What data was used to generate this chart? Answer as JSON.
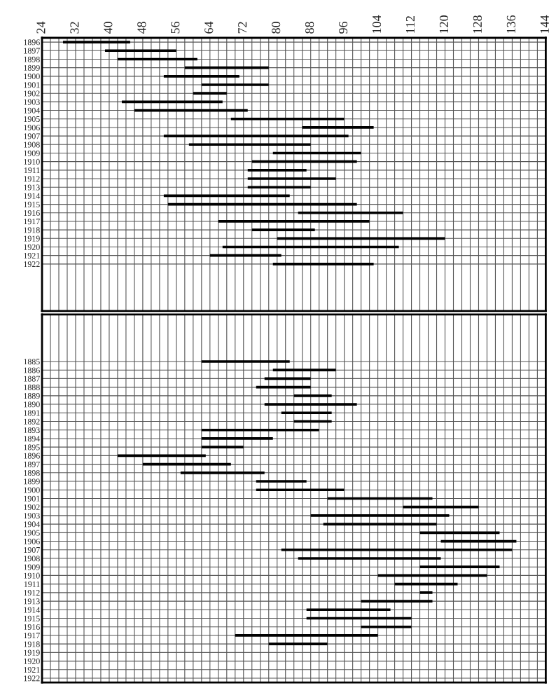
{
  "chart_data": [
    {
      "type": "bar",
      "orientation": "horizontal",
      "grid": true,
      "color": "#000000",
      "categories": [
        "1896",
        "1897",
        "1898",
        "1899",
        "1900",
        "1901",
        "1902",
        "1903",
        "1904",
        "1905",
        "1906",
        "1907",
        "1908",
        "1909",
        "1910",
        "1911",
        "1912",
        "1913",
        "1914",
        "1915",
        "1916",
        "1917",
        "1918",
        "1919",
        "1920",
        "1921",
        "1922"
      ],
      "base": [
        29,
        39,
        42,
        58,
        53,
        62,
        60,
        43,
        46,
        69,
        86,
        53,
        59,
        79,
        74,
        73,
        73,
        73,
        53,
        54,
        85,
        66,
        74,
        80,
        67,
        64,
        79
      ],
      "values": [
        16,
        17,
        19,
        20,
        18,
        16,
        8,
        24,
        27,
        27,
        17,
        44,
        29,
        21,
        25,
        14,
        21,
        15,
        30,
        45,
        25,
        36,
        15,
        40,
        42,
        17,
        24
      ],
      "xlim": [
        24,
        144
      ],
      "xticks": [
        24,
        {
          "value": 26,
          "label": null
        },
        {
          "value": 28,
          "label": null
        },
        {
          "value": 30,
          "label": null
        },
        32,
        {
          "value": 34,
          "label": null
        },
        {
          "value": 36,
          "label": null
        },
        {
          "value": 38,
          "label": null
        },
        40,
        {
          "value": 42,
          "label": null
        },
        {
          "value": 44,
          "label": null
        },
        {
          "value": 46,
          "label": null
        },
        48,
        {
          "value": 50,
          "label": null
        },
        {
          "value": 52,
          "label": null
        },
        {
          "value": 54,
          "label": null
        },
        56,
        {
          "value": 58,
          "label": null
        },
        {
          "value": 60,
          "label": null
        },
        {
          "value": 62,
          "label": null
        },
        64,
        {
          "value": 66,
          "label": null
        },
        {
          "value": 68,
          "label": null
        },
        {
          "value": 70,
          "label": null
        },
        72,
        {
          "value": 74,
          "label": null
        },
        {
          "value": 76,
          "label": null
        },
        {
          "value": 78,
          "label": null
        },
        80,
        {
          "value": 82,
          "label": null
        },
        {
          "value": 84,
          "label": null
        },
        {
          "value": 86,
          "label": null
        },
        88,
        {
          "value": 90,
          "label": null
        },
        {
          "value": 92,
          "label": null
        },
        {
          "value": 94,
          "label": null
        },
        96,
        {
          "value": 98,
          "label": null
        },
        {
          "value": 100,
          "label": null
        },
        {
          "value": 102,
          "label": null
        },
        104,
        {
          "value": 106,
          "label": null
        },
        {
          "value": 108,
          "label": null
        },
        {
          "value": 110,
          "label": null
        },
        112,
        {
          "value": 114,
          "label": null
        },
        {
          "value": 116,
          "label": null
        },
        {
          "value": 118,
          "label": null
        },
        120,
        {
          "value": 122,
          "label": null
        },
        {
          "value": 124,
          "label": null
        },
        {
          "value": 126,
          "label": null
        },
        128,
        {
          "value": 130,
          "label": null
        },
        {
          "value": 132,
          "label": null
        },
        {
          "value": 134,
          "label": null
        },
        136,
        {
          "value": 138,
          "label": null
        },
        {
          "value": 140,
          "label": null
        },
        {
          "value": 142,
          "label": null
        },
        144
      ]
    },
    {
      "type": "bar",
      "orientation": "horizontal",
      "grid": true,
      "color": "#000000",
      "tick_labels": "y",
      "categories": [
        "1885",
        "1886",
        "1887",
        "1888",
        "1889",
        "1890",
        "1891",
        "1892",
        "1893",
        "1894",
        "1895",
        "1896",
        "1897",
        "1898",
        "1899",
        "1900",
        "1901",
        "1902",
        "1903",
        "1904",
        "1905",
        "1906",
        "1907",
        "1908",
        "1909",
        "1910",
        "1911",
        "1912",
        "1913",
        "1914",
        "1915",
        "1916",
        "1917",
        "1918",
        "1919",
        "1920",
        "1921",
        "1922"
      ],
      "base": [
        62,
        79,
        77,
        75,
        84,
        77,
        81,
        84,
        62,
        62,
        62,
        42,
        48,
        57,
        75,
        75,
        92,
        110,
        88,
        91,
        114,
        119,
        81,
        85,
        114,
        104,
        108,
        114,
        100,
        87,
        87,
        100,
        70,
        78,
        null,
        null,
        null,
        null
      ],
      "values": [
        21,
        15,
        11,
        13,
        9,
        22,
        12,
        9,
        28,
        17,
        10,
        21,
        21,
        20,
        12,
        21,
        25,
        18,
        33,
        27,
        19,
        18,
        55,
        34,
        19,
        26,
        15,
        3,
        17,
        20,
        25,
        12,
        34,
        14,
        null,
        null,
        null,
        null
      ],
      "xlim": [
        24,
        144
      ],
      "xticks": [
        24,
        {
          "value": 26,
          "label": null
        },
        {
          "value": 28,
          "label": null
        },
        {
          "value": 30,
          "label": null
        },
        32,
        {
          "value": 34,
          "label": null
        },
        {
          "value": 36,
          "label": null
        },
        {
          "value": 38,
          "label": null
        },
        40,
        {
          "value": 42,
          "label": null
        },
        {
          "value": 44,
          "label": null
        },
        {
          "value": 46,
          "label": null
        },
        48,
        {
          "value": 50,
          "label": null
        },
        {
          "value": 52,
          "label": null
        },
        {
          "value": 54,
          "label": null
        },
        56,
        {
          "value": 58,
          "label": null
        },
        {
          "value": 60,
          "label": null
        },
        {
          "value": 62,
          "label": null
        },
        64,
        {
          "value": 66,
          "label": null
        },
        {
          "value": 68,
          "label": null
        },
        {
          "value": 70,
          "label": null
        },
        72,
        {
          "value": 74,
          "label": null
        },
        {
          "value": 76,
          "label": null
        },
        {
          "value": 78,
          "label": null
        },
        80,
        {
          "value": 82,
          "label": null
        },
        {
          "value": 84,
          "label": null
        },
        {
          "value": 86,
          "label": null
        },
        88,
        {
          "value": 90,
          "label": null
        },
        {
          "value": 92,
          "label": null
        },
        {
          "value": 94,
          "label": null
        },
        96,
        {
          "value": 98,
          "label": null
        },
        {
          "value": 100,
          "label": null
        },
        {
          "value": 102,
          "label": null
        },
        104,
        {
          "value": 106,
          "label": null
        },
        {
          "value": 108,
          "label": null
        },
        {
          "value": 110,
          "label": null
        },
        112,
        {
          "value": 114,
          "label": null
        },
        {
          "value": 116,
          "label": null
        },
        {
          "value": 118,
          "label": null
        },
        120,
        {
          "value": 122,
          "label": null
        },
        {
          "value": 124,
          "label": null
        },
        {
          "value": 126,
          "label": null
        },
        128,
        {
          "value": 130,
          "label": null
        },
        {
          "value": 132,
          "label": null
        },
        {
          "value": 134,
          "label": null
        },
        136,
        {
          "value": 138,
          "label": null
        },
        {
          "value": 140,
          "label": null
        },
        {
          "value": 142,
          "label": null
        },
        144
      ]
    }
  ]
}
